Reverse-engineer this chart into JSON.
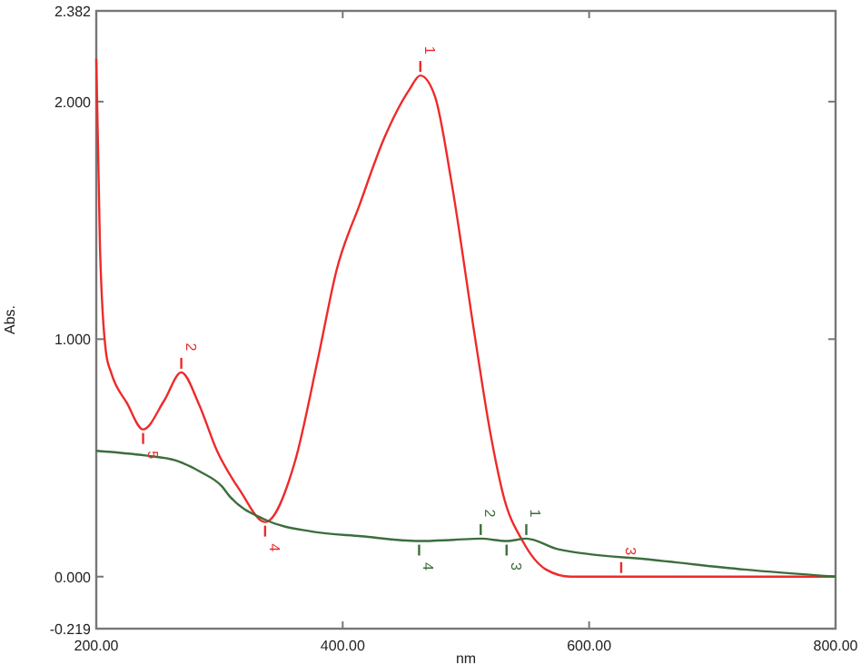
{
  "chart_data": {
    "type": "line",
    "xlabel": "nm",
    "ylabel": "Abs.",
    "xlim": [
      200,
      800
    ],
    "xticks": [
      {
        "value": 200,
        "label": "200.00"
      },
      {
        "value": 400,
        "label": "400.00"
      },
      {
        "value": 600,
        "label": "600.00"
      },
      {
        "value": 800,
        "label": "800.00"
      }
    ],
    "ylim": [
      -0.219,
      2.382
    ],
    "yticks": [
      {
        "value": -0.219,
        "label": "-0.219"
      },
      {
        "value": 0,
        "label": "0.000"
      },
      {
        "value": 1,
        "label": "1.000"
      },
      {
        "value": 2,
        "label": "2.000"
      },
      {
        "value": 2.382,
        "label": "2.382"
      }
    ],
    "grid": false,
    "marker": "none",
    "line_style": "solid",
    "series": [
      {
        "color": "#ee2a2a",
        "x": [
          200,
          203,
          208,
          212,
          225,
          238,
          255,
          269,
          283,
          298,
          317,
          337,
          361,
          380,
          395,
          414,
          434,
          454,
          463,
          475,
          488,
          507,
          520,
          531,
          546,
          565,
          585,
          626,
          700,
          800
        ],
        "values": [
          2.18,
          1.39,
          0.94,
          0.86,
          0.73,
          0.62,
          0.74,
          0.86,
          0.73,
          0.53,
          0.36,
          0.23,
          0.48,
          0.92,
          1.29,
          1.57,
          1.85,
          2.05,
          2.11,
          2.02,
          1.67,
          1.02,
          0.6,
          0.33,
          0.15,
          0.03,
          0.0,
          0.0,
          0.0,
          0.0
        ]
      },
      {
        "color": "#3c6e3c",
        "x": [
          200,
          240,
          264,
          285,
          302,
          308,
          337,
          375,
          415,
          462,
          490,
          512,
          533,
          549,
          575,
          653,
          726,
          800
        ],
        "values": [
          0.53,
          0.51,
          0.49,
          0.44,
          0.38,
          0.34,
          0.24,
          0.19,
          0.17,
          0.15,
          0.155,
          0.16,
          0.15,
          0.16,
          0.115,
          0.07,
          0.03,
          0.0
        ]
      }
    ],
    "annotations": [
      {
        "text": "1",
        "x": 463,
        "y": 2.11
      },
      {
        "text": "2",
        "x": 269,
        "y": 0.86
      },
      {
        "text": "3",
        "x": 626,
        "y": 0.0
      },
      {
        "text": "4",
        "x": 337,
        "y": 0.23
      },
      {
        "text": "5",
        "x": 238,
        "y": 0.62
      },
      {
        "text": "1",
        "x": 549,
        "y": 0.16
      },
      {
        "text": "2",
        "x": 512,
        "y": 0.16
      },
      {
        "text": "3",
        "x": 533,
        "y": 0.15
      },
      {
        "text": "4",
        "x": 462,
        "y": 0.15
      }
    ]
  }
}
